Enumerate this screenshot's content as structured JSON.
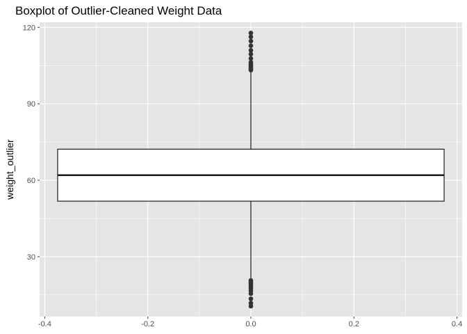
{
  "chart_data": {
    "type": "boxplot",
    "title": "Boxplot of Outlier-Cleaned Weight Data",
    "xlabel": "",
    "ylabel": "weight_outlier",
    "xlim": [
      -0.41,
      0.41
    ],
    "ylim": [
      6.5,
      122
    ],
    "x_ticks": [
      -0.4,
      -0.2,
      0.0,
      0.2,
      0.4
    ],
    "x_tick_labels": [
      "-0.4",
      "-0.2",
      "0.0",
      "0.2",
      "0.4"
    ],
    "y_ticks": [
      30,
      60,
      90,
      120
    ],
    "y_tick_labels": [
      "30",
      "60",
      "90",
      "120"
    ],
    "grid": true,
    "box": {
      "x": 0,
      "half_width": 0.375,
      "q1": 51.8,
      "median": 62,
      "q3": 72.2,
      "whisker_low": 21.1,
      "whisker_high": 102.8
    },
    "outliers": [
      103.2,
      103.6,
      104.0,
      104.5,
      105.0,
      105.6,
      106.3,
      107.8,
      109.5,
      111.0,
      112.8,
      114.6,
      116.3,
      117.8,
      20.7,
      20.2,
      19.6,
      19.0,
      18.3,
      17.5,
      16.6,
      15.5,
      13.5,
      11.8,
      10.6
    ],
    "colors": {
      "panel": "#e5e5e5",
      "grid": "#ffffff",
      "box_fill": "#ffffff",
      "line": "#1a1a1a",
      "point": "#333333"
    }
  }
}
